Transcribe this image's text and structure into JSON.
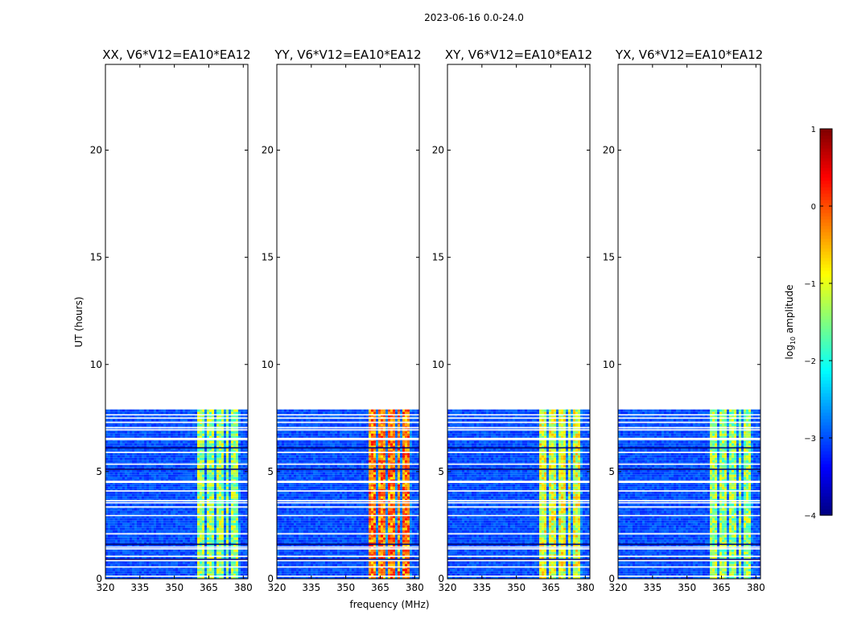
{
  "figure": {
    "suptitle": "2023-06-16 0.0-24.0"
  },
  "chart_data": {
    "type": "heatmap",
    "panels": [
      {
        "title": "XX, V6*V12=EA10*EA12",
        "hot_level": 0.55
      },
      {
        "title": "YY, V6*V12=EA10*EA12",
        "hot_level": 0.78
      },
      {
        "title": "XY, V6*V12=EA10*EA12",
        "hot_level": 0.62
      },
      {
        "title": "YX, V6*V12=EA10*EA12",
        "hot_level": 0.55
      }
    ],
    "xlabel": "frequency (MHz)",
    "ylabel": "UT (hours)",
    "xlim": [
      320,
      382
    ],
    "ylim": [
      0,
      24
    ],
    "xticks": [
      320,
      335,
      350,
      365,
      380
    ],
    "yticks": [
      0,
      5,
      10,
      15,
      20
    ],
    "data_extent_hours": [
      0,
      7.9
    ],
    "rfi_band_mhz": [
      359.5,
      378.5
    ],
    "rfi_band_edges_mhz": [
      359.5,
      364,
      367.5,
      372.5,
      374.5,
      378.5
    ],
    "gap_lines_hours": [
      0.12,
      0.55,
      0.85,
      1.05,
      1.4,
      1.48,
      2.1,
      2.95,
      3.35,
      3.55,
      3.65,
      4.1,
      4.5,
      4.55,
      5.35,
      5.9,
      6.5,
      6.55,
      6.95,
      7.05,
      7.3,
      7.5,
      7.65
    ],
    "colorbar": {
      "label": "log₁₀ amplitude",
      "label_main": "log",
      "label_sub": "10",
      "label_rest": " amplitude",
      "range": [
        -4,
        1
      ],
      "ticks": [
        "−4",
        "−3",
        "−2",
        "−1",
        "0",
        "1"
      ],
      "colormap": "jet"
    }
  }
}
